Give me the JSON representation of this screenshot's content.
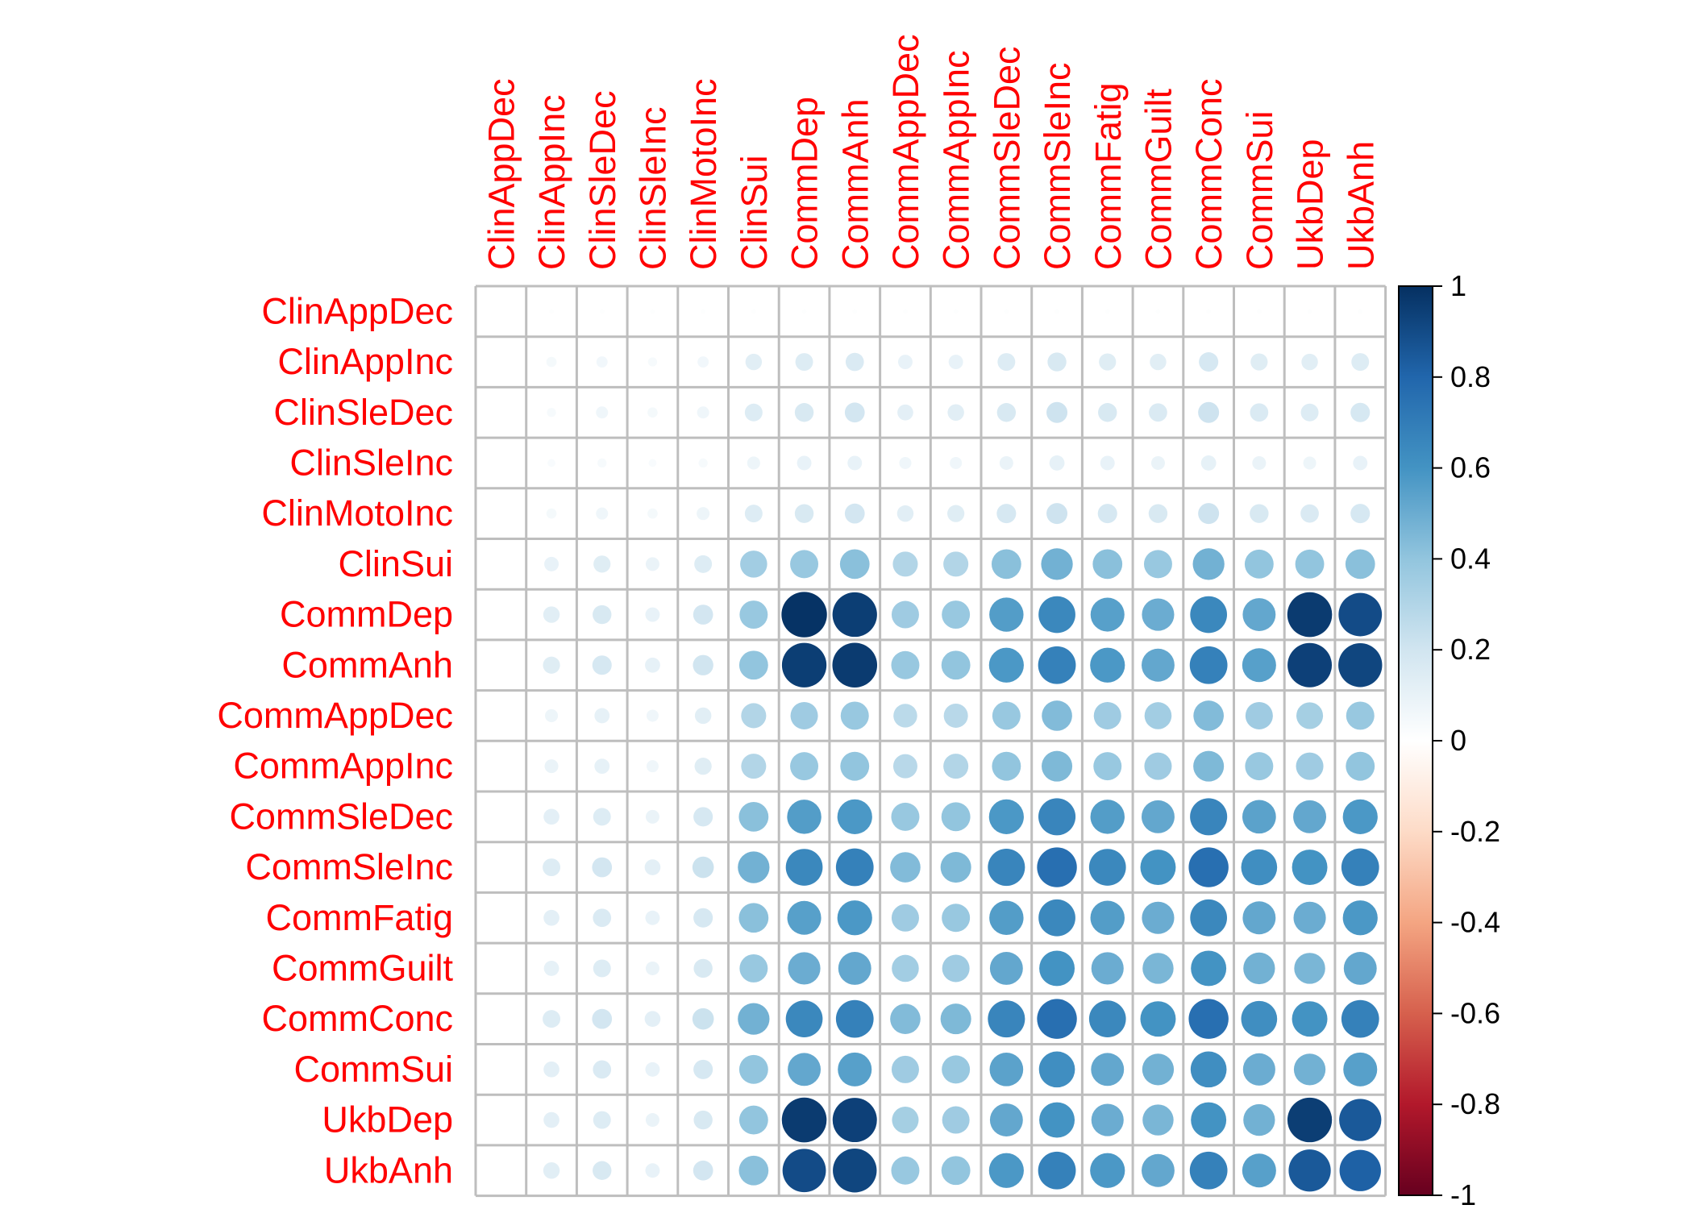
{
  "chart_data": {
    "type": "heatmap",
    "title": "",
    "variables": [
      "ClinAppDec",
      "ClinAppInc",
      "ClinSleDec",
      "ClinSleInc",
      "ClinMotoInc",
      "ClinSui",
      "CommDep",
      "CommAnh",
      "CommAppDec",
      "CommAppInc",
      "CommSleDec",
      "CommSleInc",
      "CommFatig",
      "CommGuilt",
      "CommConc",
      "CommSui",
      "UkbDep",
      "UkbAnh"
    ],
    "matrix": [
      [
        0.0,
        0.01,
        0.01,
        0.01,
        0.01,
        0.01,
        0.01,
        0.01,
        0.01,
        0.01,
        0.01,
        0.01,
        0.01,
        0.01,
        0.01,
        0.01,
        0.01,
        0.01
      ],
      [
        0.0,
        0.05,
        0.06,
        0.04,
        0.06,
        0.13,
        0.15,
        0.16,
        0.1,
        0.1,
        0.15,
        0.17,
        0.14,
        0.13,
        0.18,
        0.14,
        0.13,
        0.15
      ],
      [
        0.0,
        0.04,
        0.07,
        0.05,
        0.07,
        0.15,
        0.17,
        0.19,
        0.12,
        0.13,
        0.17,
        0.21,
        0.17,
        0.16,
        0.21,
        0.16,
        0.15,
        0.18
      ],
      [
        0.0,
        0.03,
        0.04,
        0.03,
        0.04,
        0.08,
        0.1,
        0.1,
        0.07,
        0.07,
        0.09,
        0.11,
        0.1,
        0.09,
        0.11,
        0.09,
        0.08,
        0.1
      ],
      [
        0.0,
        0.05,
        0.07,
        0.05,
        0.08,
        0.15,
        0.17,
        0.19,
        0.13,
        0.14,
        0.18,
        0.21,
        0.18,
        0.17,
        0.21,
        0.17,
        0.16,
        0.18
      ],
      [
        0.0,
        0.1,
        0.14,
        0.09,
        0.15,
        0.35,
        0.38,
        0.42,
        0.3,
        0.3,
        0.42,
        0.48,
        0.42,
        0.38,
        0.48,
        0.4,
        0.4,
        0.42
      ],
      [
        0.0,
        0.13,
        0.17,
        0.1,
        0.19,
        0.38,
        0.99,
        0.95,
        0.36,
        0.38,
        0.56,
        0.65,
        0.55,
        0.5,
        0.65,
        0.52,
        0.96,
        0.9
      ],
      [
        0.0,
        0.14,
        0.18,
        0.11,
        0.2,
        0.4,
        0.95,
        0.96,
        0.38,
        0.4,
        0.58,
        0.68,
        0.58,
        0.52,
        0.68,
        0.55,
        0.94,
        0.92
      ],
      [
        0.0,
        0.08,
        0.11,
        0.07,
        0.13,
        0.3,
        0.36,
        0.38,
        0.27,
        0.28,
        0.38,
        0.44,
        0.36,
        0.35,
        0.44,
        0.36,
        0.34,
        0.38
      ],
      [
        0.0,
        0.09,
        0.11,
        0.07,
        0.14,
        0.3,
        0.38,
        0.4,
        0.28,
        0.3,
        0.4,
        0.45,
        0.38,
        0.36,
        0.45,
        0.38,
        0.36,
        0.4
      ],
      [
        0.0,
        0.12,
        0.15,
        0.09,
        0.18,
        0.42,
        0.56,
        0.58,
        0.38,
        0.4,
        0.58,
        0.66,
        0.56,
        0.52,
        0.66,
        0.54,
        0.52,
        0.58
      ],
      [
        0.0,
        0.15,
        0.19,
        0.12,
        0.22,
        0.48,
        0.65,
        0.68,
        0.44,
        0.45,
        0.66,
        0.76,
        0.65,
        0.6,
        0.76,
        0.62,
        0.6,
        0.68
      ],
      [
        0.0,
        0.12,
        0.16,
        0.1,
        0.18,
        0.42,
        0.55,
        0.58,
        0.36,
        0.38,
        0.56,
        0.65,
        0.56,
        0.5,
        0.65,
        0.52,
        0.5,
        0.58
      ],
      [
        0.0,
        0.11,
        0.15,
        0.09,
        0.17,
        0.38,
        0.5,
        0.52,
        0.35,
        0.36,
        0.52,
        0.6,
        0.5,
        0.46,
        0.6,
        0.48,
        0.46,
        0.52
      ],
      [
        0.0,
        0.15,
        0.19,
        0.12,
        0.22,
        0.48,
        0.65,
        0.68,
        0.44,
        0.45,
        0.66,
        0.76,
        0.65,
        0.6,
        0.76,
        0.62,
        0.6,
        0.68
      ],
      [
        0.0,
        0.12,
        0.16,
        0.1,
        0.18,
        0.4,
        0.52,
        0.55,
        0.36,
        0.38,
        0.54,
        0.62,
        0.52,
        0.48,
        0.62,
        0.5,
        0.48,
        0.55
      ],
      [
        0.0,
        0.12,
        0.15,
        0.09,
        0.17,
        0.4,
        0.96,
        0.94,
        0.34,
        0.36,
        0.52,
        0.6,
        0.5,
        0.46,
        0.6,
        0.48,
        0.95,
        0.85
      ],
      [
        0.0,
        0.13,
        0.17,
        0.1,
        0.19,
        0.42,
        0.9,
        0.92,
        0.38,
        0.4,
        0.58,
        0.68,
        0.58,
        0.52,
        0.68,
        0.55,
        0.85,
        0.82
      ]
    ],
    "colorbar": {
      "range": [
        -1,
        1
      ],
      "ticks": [
        "1",
        "0.8",
        "0.6",
        "0.4",
        "0.2",
        "0",
        "-0.2",
        "-0.4",
        "-0.6",
        "-0.8",
        "-1"
      ],
      "colors": [
        "#67001F",
        "#B2182B",
        "#D6604D",
        "#F4A582",
        "#FDDBC7",
        "#FFFFFF",
        "#D1E5F0",
        "#92C5DE",
        "#4393C3",
        "#2166AC",
        "#053061"
      ]
    },
    "label_color": "#FF0000",
    "grid_color": "#BEBEBE"
  }
}
